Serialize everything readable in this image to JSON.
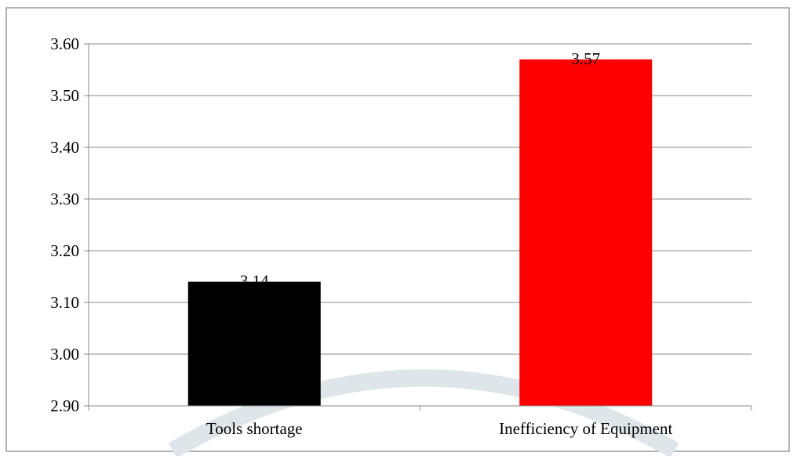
{
  "chart_data": {
    "type": "bar",
    "categories": [
      "Tools shortage",
      "Inefficiency of Equipment"
    ],
    "values": [
      3.14,
      3.57
    ],
    "data_labels": [
      "3.14",
      "3.57"
    ],
    "bar_colors": [
      "#000000",
      "#ff0000"
    ],
    "title": "",
    "xlabel": "",
    "ylabel": "",
    "ylim": [
      2.9,
      3.6
    ],
    "y_ticks": [
      2.9,
      3.0,
      3.1,
      3.2,
      3.3,
      3.4,
      3.5,
      3.6
    ],
    "y_tick_labels": [
      "2.90",
      "3.00",
      "3.10",
      "3.20",
      "3.30",
      "3.40",
      "3.50",
      "3.60"
    ],
    "grid": true,
    "legend": "none"
  }
}
